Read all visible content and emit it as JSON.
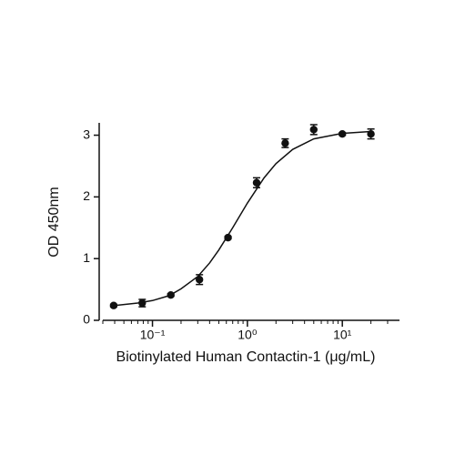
{
  "chart_data": {
    "type": "scatter",
    "x_label": "Biotinylated Human Contactin-1 (μg/mL)",
    "y_label": "OD 450nm",
    "x_scale": "log",
    "xlim": [
      0.03,
      40
    ],
    "ylim": [
      0,
      3.2
    ],
    "xticks": [
      {
        "value": 0.1,
        "label": "10⁻¹"
      },
      {
        "value": 1,
        "label": "10⁰"
      },
      {
        "value": 10,
        "label": "10¹"
      }
    ],
    "xminorticks": [
      0.03,
      0.04,
      0.05,
      0.06,
      0.07,
      0.08,
      0.09,
      0.2,
      0.3,
      0.4,
      0.5,
      0.6,
      0.7,
      0.8,
      0.9,
      2,
      3,
      4,
      5,
      6,
      7,
      8,
      9,
      20,
      30
    ],
    "yticks": [
      0,
      1,
      2,
      3
    ],
    "grid": false,
    "color": "#111111",
    "series": [
      {
        "style": "points",
        "x": [
          0.039,
          0.078,
          0.156,
          0.3125,
          0.625,
          1.25,
          2.5,
          5,
          10,
          20
        ],
        "values": [
          0.24,
          0.28,
          0.41,
          0.66,
          1.34,
          2.23,
          2.87,
          3.09,
          3.02,
          3.02
        ],
        "errors": [
          0.02,
          0.06,
          0.02,
          0.08,
          0.02,
          0.08,
          0.07,
          0.08,
          0.02,
          0.08
        ]
      },
      {
        "style": "line",
        "x": [
          0.04,
          0.07,
          0.1,
          0.15,
          0.2,
          0.3,
          0.4,
          0.5,
          0.7,
          1,
          1.5,
          2,
          3,
          5,
          10,
          20
        ],
        "values": [
          0.24,
          0.28,
          0.32,
          0.4,
          0.51,
          0.71,
          0.93,
          1.14,
          1.5,
          1.9,
          2.31,
          2.54,
          2.77,
          2.94,
          3.03,
          3.06
        ]
      }
    ]
  }
}
